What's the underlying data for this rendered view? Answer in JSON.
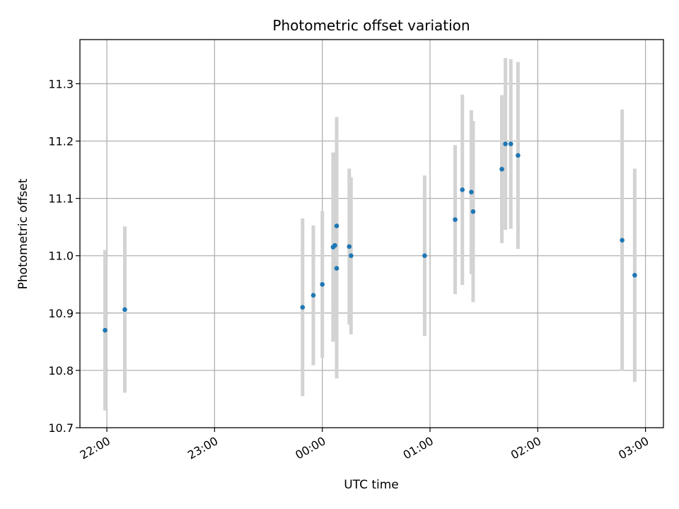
{
  "chart_data": {
    "type": "scatter",
    "title": "Photometric offset variation",
    "xlabel": "UTC time",
    "ylabel": "Photometric offset",
    "x_tick_labels": [
      "22:00",
      "23:00",
      "00:00",
      "01:00",
      "02:00",
      "03:00"
    ],
    "y_tick_labels": [
      "10.7",
      "10.8",
      "10.9",
      "11.0",
      "11.1",
      "11.2",
      "11.3"
    ],
    "x_ticks_minutes": [
      0,
      60,
      120,
      180,
      240,
      300
    ],
    "y_ticks": [
      10.7,
      10.8,
      10.9,
      11.0,
      11.1,
      11.2,
      11.3
    ],
    "xlim_minutes": [
      -15,
      310
    ],
    "ylim": [
      10.7,
      11.377
    ],
    "grid": true,
    "point_color": "#1f77b4",
    "errorbar_color": "#d3d3d3",
    "points": [
      {
        "t": "21:59",
        "y": 10.87,
        "err": 0.14
      },
      {
        "t": "22:10",
        "y": 10.906,
        "err": 0.145
      },
      {
        "t": "23:49",
        "y": 10.91,
        "err": 0.155
      },
      {
        "t": "23:55",
        "y": 10.931,
        "err": 0.122
      },
      {
        "t": "00:00",
        "y": 10.95,
        "err": 0.128
      },
      {
        "t": "00:06",
        "y": 11.015,
        "err": 0.165
      },
      {
        "t": "00:07",
        "y": 11.018,
        "err": 0.162
      },
      {
        "t": "00:08",
        "y": 11.052,
        "err": 0.19
      },
      {
        "t": "00:08",
        "y": 10.978,
        "err": 0.192
      },
      {
        "t": "00:15",
        "y": 11.016,
        "err": 0.136
      },
      {
        "t": "00:16",
        "y": 11.0,
        "err": 0.137
      },
      {
        "t": "00:57",
        "y": 11.0,
        "err": 0.14
      },
      {
        "t": "01:14",
        "y": 11.063,
        "err": 0.13
      },
      {
        "t": "01:18",
        "y": 11.115,
        "err": 0.166
      },
      {
        "t": "01:23",
        "y": 11.111,
        "err": 0.143
      },
      {
        "t": "01:24",
        "y": 11.077,
        "err": 0.158
      },
      {
        "t": "01:40",
        "y": 11.151,
        "err": 0.129
      },
      {
        "t": "01:42",
        "y": 11.195,
        "err": 0.15
      },
      {
        "t": "01:45",
        "y": 11.195,
        "err": 0.148
      },
      {
        "t": "01:49",
        "y": 11.175,
        "err": 0.163
      },
      {
        "t": "02:47",
        "y": 11.027,
        "err": 0.228
      },
      {
        "t": "02:54",
        "y": 10.966,
        "err": 0.186
      }
    ]
  }
}
